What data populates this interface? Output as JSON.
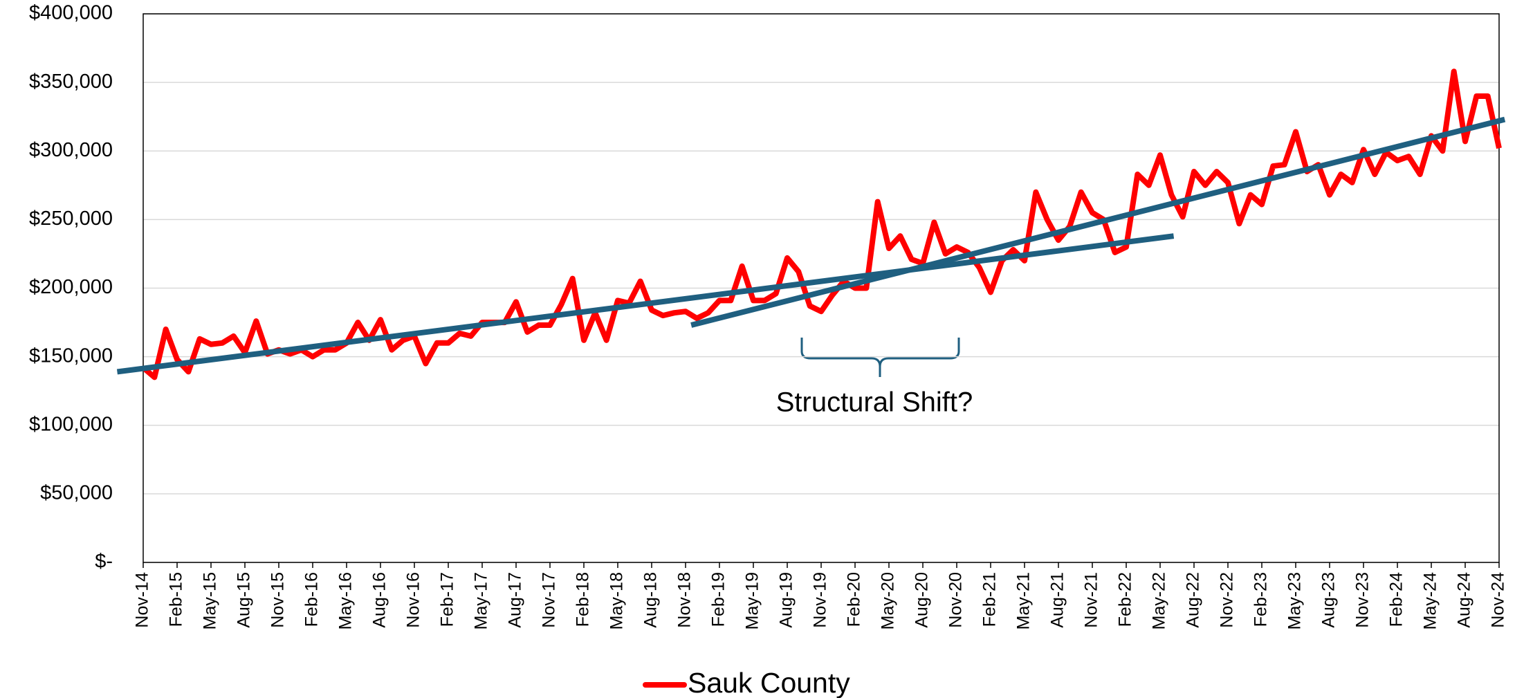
{
  "chart_data": {
    "type": "line",
    "categories": [
      "Nov-14",
      null,
      null,
      "Feb-15",
      null,
      null,
      "May-15",
      null,
      null,
      "Aug-15",
      null,
      null,
      "Nov-15",
      null,
      null,
      "Feb-16",
      null,
      null,
      "May-16",
      null,
      null,
      "Aug-16",
      null,
      null,
      "Nov-16",
      null,
      null,
      "Feb-17",
      null,
      null,
      "May-17",
      null,
      null,
      "Aug-17",
      null,
      null,
      "Nov-17",
      null,
      null,
      "Feb-18",
      null,
      null,
      "May-18",
      null,
      null,
      "Aug-18",
      null,
      null,
      "Nov-18",
      null,
      null,
      "Feb-19",
      null,
      null,
      "May-19",
      null,
      null,
      "Aug-19",
      null,
      null,
      "Nov-19",
      null,
      null,
      "Feb-20",
      null,
      null,
      "May-20",
      null,
      null,
      "Aug-20",
      null,
      null,
      "Nov-20",
      null,
      null,
      "Feb-21",
      null,
      null,
      "May-21",
      null,
      null,
      "Aug-21",
      null,
      null,
      "Nov-21",
      null,
      null,
      "Feb-22",
      null,
      null,
      "May-22",
      null,
      null,
      "Aug-22",
      null,
      null,
      "Nov-22",
      null,
      null,
      "Feb-23",
      null,
      null,
      "May-23",
      null,
      null,
      "Aug-23",
      null,
      null,
      "Nov-23",
      null,
      null,
      "Feb-24",
      null,
      null,
      "May-24",
      null,
      null,
      "Aug-24",
      null,
      null,
      "Nov-24"
    ],
    "series": [
      {
        "name": "Sauk County",
        "color": "#ff0000",
        "values": [
          142000,
          135000,
          170000,
          148000,
          139000,
          163000,
          159000,
          160000,
          165000,
          153000,
          176000,
          152000,
          155000,
          152000,
          155000,
          150000,
          155000,
          155000,
          160000,
          175000,
          162000,
          177000,
          155000,
          162000,
          165000,
          145000,
          160000,
          160000,
          167000,
          165000,
          175000,
          175000,
          175000,
          190000,
          168000,
          173000,
          173000,
          188000,
          207000,
          162000,
          182000,
          162000,
          191000,
          189000,
          205000,
          184000,
          180000,
          182000,
          183000,
          178000,
          182000,
          191000,
          191000,
          216000,
          191000,
          191000,
          196000,
          222000,
          212000,
          187000,
          183000,
          195000,
          205000,
          200000,
          200000,
          263000,
          229000,
          238000,
          221000,
          218000,
          248000,
          225000,
          230000,
          226000,
          215000,
          197000,
          220000,
          228000,
          220000,
          270000,
          250000,
          235000,
          245000,
          270000,
          255000,
          250000,
          226000,
          230000,
          283000,
          275000,
          297000,
          268000,
          252000,
          285000,
          275000,
          285000,
          277000,
          247000,
          268000,
          261000,
          289000,
          290000,
          314000,
          285000,
          290000,
          268000,
          283000,
          277000,
          301000,
          283000,
          299000,
          293000,
          296000,
          283000,
          311000,
          300000,
          358000,
          307000,
          340000,
          340000,
          302000
        ]
      }
    ],
    "trendlines": [
      {
        "color": "#1f5f80",
        "x": [
          -2.3,
          91.2
        ],
        "values": [
          139000,
          238000
        ]
      },
      {
        "color": "#1f5f80",
        "x": [
          48.5,
          120.5
        ],
        "values": [
          173000,
          323000
        ]
      }
    ],
    "ylim": [
      0,
      400000
    ],
    "yticks": [
      {
        "value": 0,
        "label": "$-"
      },
      {
        "value": 50000,
        "label": "$50,000"
      },
      {
        "value": 100000,
        "label": "$100,000"
      },
      {
        "value": 150000,
        "label": "$150,000"
      },
      {
        "value": 200000,
        "label": "$200,000"
      },
      {
        "value": 250000,
        "label": "$250,000"
      },
      {
        "value": 300000,
        "label": "$300,000"
      },
      {
        "value": 350000,
        "label": "$350,000"
      },
      {
        "value": 400000,
        "label": "$400,000"
      }
    ],
    "grid": true,
    "annotation": "Structural Shift?",
    "legend": "bottom"
  }
}
